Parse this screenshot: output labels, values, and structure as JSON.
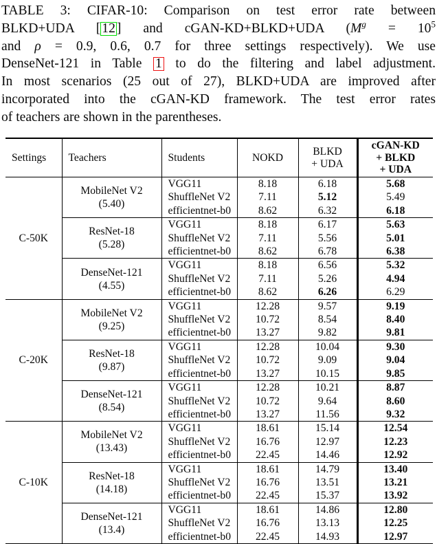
{
  "caption": {
    "line1": "TABLE 3: CIFAR-10: Comparison on test error rate between",
    "line2": {
      "pre": "BLKD+UDA [",
      "cite": "12",
      "mid": "] and cGAN-KD+BLKD+UDA (",
      "var": "M",
      "var_sup": "g",
      "eq": " = 10",
      "exp": "5"
    },
    "line3": {
      "pre": "and ",
      "rho": "ρ",
      "post": " = 0.9, 0.6, 0.7 for three settings respectively). We use"
    },
    "line4": {
      "pre": "DenseNet-121 in Table ",
      "ref": "1",
      "post": " to do the filtering and label adjustment."
    },
    "line5": "In most scenarios (25 out of 27), BLKD+UDA are improved after",
    "line6": "incorporated into the cGAN-KD framework. The test error rates",
    "line7": "of teachers are shown in the parentheses."
  },
  "colors": {
    "citation_box": "#00dd00",
    "table_ref_box": "#ee1111",
    "text": "#0a0a0a"
  },
  "table": {
    "header": {
      "settings": "Settings",
      "teachers": "Teachers",
      "students": "Students",
      "nokd": "NOKD",
      "blkd": [
        "BLKD",
        "+ UDA"
      ],
      "cgan": [
        "cGAN-KD",
        "+ BLKD",
        "+ UDA"
      ]
    },
    "sections": [
      {
        "setting": "C-50K",
        "groups": [
          {
            "teacher": "MobileNet V2",
            "teacher_err": "(5.40)",
            "rows": [
              {
                "student": "VGG11",
                "nokd": "8.18",
                "blkd": "6.18",
                "cgan": "5.68",
                "bold": "cgan"
              },
              {
                "student": "ShuffleNet V2",
                "nokd": "7.11",
                "blkd": "5.12",
                "cgan": "5.49",
                "bold": "blkd"
              },
              {
                "student": "efficientnet-b0",
                "nokd": "8.62",
                "blkd": "6.32",
                "cgan": "6.18",
                "bold": "cgan"
              }
            ]
          },
          {
            "teacher": "ResNet-18",
            "teacher_err": "(5.28)",
            "rows": [
              {
                "student": "VGG11",
                "nokd": "8.18",
                "blkd": "6.17",
                "cgan": "5.63",
                "bold": "cgan"
              },
              {
                "student": "ShuffleNet V2",
                "nokd": "7.11",
                "blkd": "5.56",
                "cgan": "5.01",
                "bold": "cgan"
              },
              {
                "student": "efficientnet-b0",
                "nokd": "8.62",
                "blkd": "6.78",
                "cgan": "6.38",
                "bold": "cgan"
              }
            ]
          },
          {
            "teacher": "DenseNet-121",
            "teacher_err": "(4.55)",
            "rows": [
              {
                "student": "VGG11",
                "nokd": "8.18",
                "blkd": "6.56",
                "cgan": "5.32",
                "bold": "cgan"
              },
              {
                "student": "ShuffleNet V2",
                "nokd": "7.11",
                "blkd": "5.26",
                "cgan": "4.94",
                "bold": "cgan"
              },
              {
                "student": "efficientnet-b0",
                "nokd": "8.62",
                "blkd": "6.26",
                "cgan": "6.29",
                "bold": "blkd"
              }
            ]
          }
        ]
      },
      {
        "setting": "C-20K",
        "groups": [
          {
            "teacher": "MobileNet V2",
            "teacher_err": "(9.25)",
            "rows": [
              {
                "student": "VGG11",
                "nokd": "12.28",
                "blkd": "9.57",
                "cgan": "9.19",
                "bold": "cgan"
              },
              {
                "student": "ShuffleNet V2",
                "nokd": "10.72",
                "blkd": "8.54",
                "cgan": "8.40",
                "bold": "cgan"
              },
              {
                "student": "efficientnet-b0",
                "nokd": "13.27",
                "blkd": "9.82",
                "cgan": "9.81",
                "bold": "cgan"
              }
            ]
          },
          {
            "teacher": "ResNet-18",
            "teacher_err": "(9.87)",
            "rows": [
              {
                "student": "VGG11",
                "nokd": "12.28",
                "blkd": "10.04",
                "cgan": "9.30",
                "bold": "cgan"
              },
              {
                "student": "ShuffleNet V2",
                "nokd": "10.72",
                "blkd": "9.09",
                "cgan": "9.04",
                "bold": "cgan"
              },
              {
                "student": "efficientnet-b0",
                "nokd": "13.27",
                "blkd": "10.15",
                "cgan": "9.85",
                "bold": "cgan"
              }
            ]
          },
          {
            "teacher": "DenseNet-121",
            "teacher_err": "(8.54)",
            "rows": [
              {
                "student": "VGG11",
                "nokd": "12.28",
                "blkd": "10.21",
                "cgan": "8.87",
                "bold": "cgan"
              },
              {
                "student": "ShuffleNet V2",
                "nokd": "10.72",
                "blkd": "9.64",
                "cgan": "8.60",
                "bold": "cgan"
              },
              {
                "student": "efficientnet-b0",
                "nokd": "13.27",
                "blkd": "11.56",
                "cgan": "9.32",
                "bold": "cgan"
              }
            ]
          }
        ]
      },
      {
        "setting": "C-10K",
        "groups": [
          {
            "teacher": "MobileNet V2",
            "teacher_err": "(13.43)",
            "rows": [
              {
                "student": "VGG11",
                "nokd": "18.61",
                "blkd": "15.14",
                "cgan": "12.54",
                "bold": "cgan"
              },
              {
                "student": "ShuffleNet V2",
                "nokd": "16.76",
                "blkd": "12.97",
                "cgan": "12.23",
                "bold": "cgan"
              },
              {
                "student": "efficientnet-b0",
                "nokd": "22.45",
                "blkd": "14.46",
                "cgan": "12.92",
                "bold": "cgan"
              }
            ]
          },
          {
            "teacher": "ResNet-18",
            "teacher_err": "(14.18)",
            "rows": [
              {
                "student": "VGG11",
                "nokd": "18.61",
                "blkd": "14.79",
                "cgan": "13.40",
                "bold": "cgan"
              },
              {
                "student": "ShuffleNet V2",
                "nokd": "16.76",
                "blkd": "13.51",
                "cgan": "13.21",
                "bold": "cgan"
              },
              {
                "student": "efficientnet-b0",
                "nokd": "22.45",
                "blkd": "15.37",
                "cgan": "13.92",
                "bold": "cgan"
              }
            ]
          },
          {
            "teacher": "DenseNet-121",
            "teacher_err": "(13.4)",
            "rows": [
              {
                "student": "VGG11",
                "nokd": "18.61",
                "blkd": "14.86",
                "cgan": "12.80",
                "bold": "cgan"
              },
              {
                "student": "ShuffleNet V2",
                "nokd": "16.76",
                "blkd": "13.13",
                "cgan": "12.25",
                "bold": "cgan"
              },
              {
                "student": "efficientnet-b0",
                "nokd": "22.45",
                "blkd": "14.93",
                "cgan": "12.97",
                "bold": "cgan"
              }
            ]
          }
        ]
      }
    ]
  }
}
